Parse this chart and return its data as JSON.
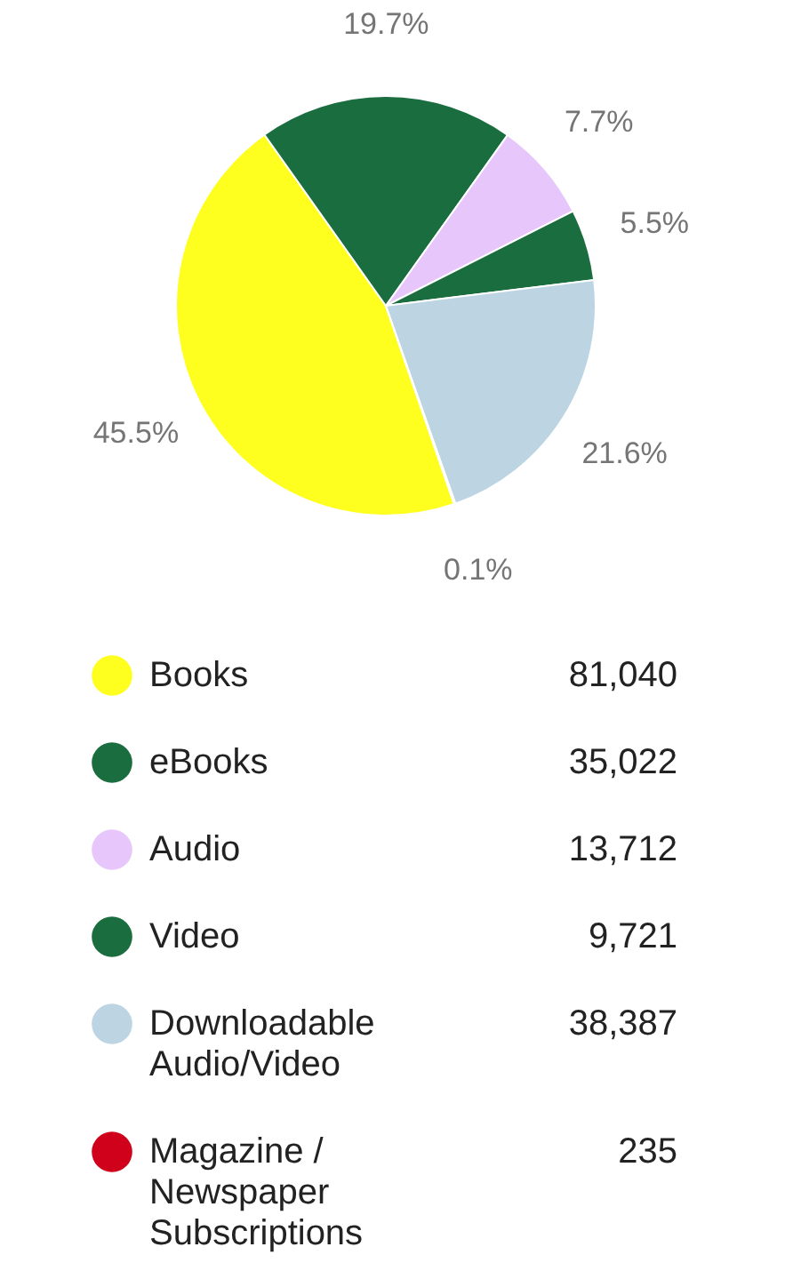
{
  "chart_data": {
    "type": "pie",
    "categories": [
      "Books",
      "eBooks",
      "Audio",
      "Video",
      "Downloadable Audio/Video",
      "Magazine / Newspaper Subscriptions"
    ],
    "values": [
      45.5,
      19.7,
      7.7,
      5.5,
      21.6,
      0.1
    ],
    "colors": [
      "#ffff1f",
      "#1a6d3e",
      "#e6c6fb",
      "#1a6d3e",
      "#bdd4e2",
      "#d0021b"
    ],
    "value_labels": [
      "45.5%",
      "19.7%",
      "7.7%",
      "5.5%",
      "21.6%",
      "0.1%"
    ],
    "annotations": [
      "81,040",
      "35,022",
      "13,712",
      "9,721",
      "38,387",
      "235"
    ],
    "legend": "bottom"
  }
}
